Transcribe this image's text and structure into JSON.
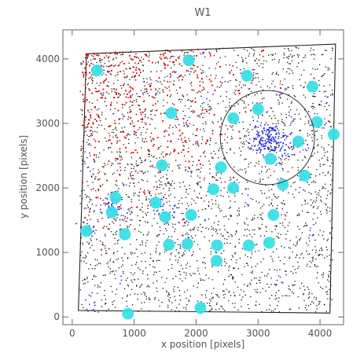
{
  "chart_data": {
    "type": "scatter",
    "title": "W1",
    "xlabel": "x position [pixels]",
    "ylabel": "y position [pixels]",
    "xlim": [
      -150,
      4380
    ],
    "ylim": [
      -120,
      4450
    ],
    "x_ticks": [
      0,
      1000,
      2000,
      3000,
      4000
    ],
    "y_ticks": [
      0,
      1000,
      2000,
      3000,
      4000
    ],
    "x_tick_labels": [
      "0",
      "1000",
      "2000",
      "3000",
      "4000"
    ],
    "y_tick_labels": [
      "0",
      "1000",
      "2000",
      "3000",
      "4000"
    ],
    "legend": "none",
    "grid": false,
    "field_outline": [
      [
        230,
        4080
      ],
      [
        4250,
        4230
      ],
      [
        4160,
        60
      ],
      [
        100,
        100
      ]
    ],
    "colors": {
      "sources_black": "#111111",
      "sources_red": "#dd1111",
      "sources_blue": "#1a1ae6",
      "masked_regions": "#33e0e6",
      "circle_outline": "#333333"
    },
    "circle_region": {
      "center": [
        3150,
        2780
      ],
      "radius": 760
    },
    "masked_regions": [
      [
        400,
        3820
      ],
      [
        1880,
        3980
      ],
      [
        2820,
        3740
      ],
      [
        3880,
        3570
      ],
      [
        2600,
        3080
      ],
      [
        3000,
        3220
      ],
      [
        1600,
        3160
      ],
      [
        3950,
        3020
      ],
      [
        4220,
        2830
      ],
      [
        3650,
        2720
      ],
      [
        3200,
        2450
      ],
      [
        1450,
        2350
      ],
      [
        2400,
        2320
      ],
      [
        3750,
        2190
      ],
      [
        2280,
        1980
      ],
      [
        2600,
        2000
      ],
      [
        3400,
        2050
      ],
      [
        700,
        1850
      ],
      [
        1350,
        1770
      ],
      [
        3250,
        1580
      ],
      [
        640,
        1620
      ],
      [
        1920,
        1580
      ],
      [
        850,
        1280
      ],
      [
        1500,
        1550
      ],
      [
        230,
        1330
      ],
      [
        1560,
        1120
      ],
      [
        1860,
        1130
      ],
      [
        2850,
        1110
      ],
      [
        2340,
        1110
      ],
      [
        3180,
        1150
      ],
      [
        2330,
        870
      ],
      [
        2070,
        140
      ],
      [
        900,
        50
      ]
    ],
    "blue_clumps": [
      {
        "x": 3150,
        "y": 2750,
        "spread": 240,
        "count": 150
      },
      {
        "x": 650,
        "y": 1700,
        "spread": 220,
        "count": 45
      },
      {
        "x": 220,
        "y": 1350,
        "spread": 140,
        "count": 20
      },
      {
        "x": 1500,
        "y": 1700,
        "spread": 260,
        "count": 25
      },
      {
        "x": 3550,
        "y": 2700,
        "spread": 220,
        "count": 25
      }
    ]
  }
}
